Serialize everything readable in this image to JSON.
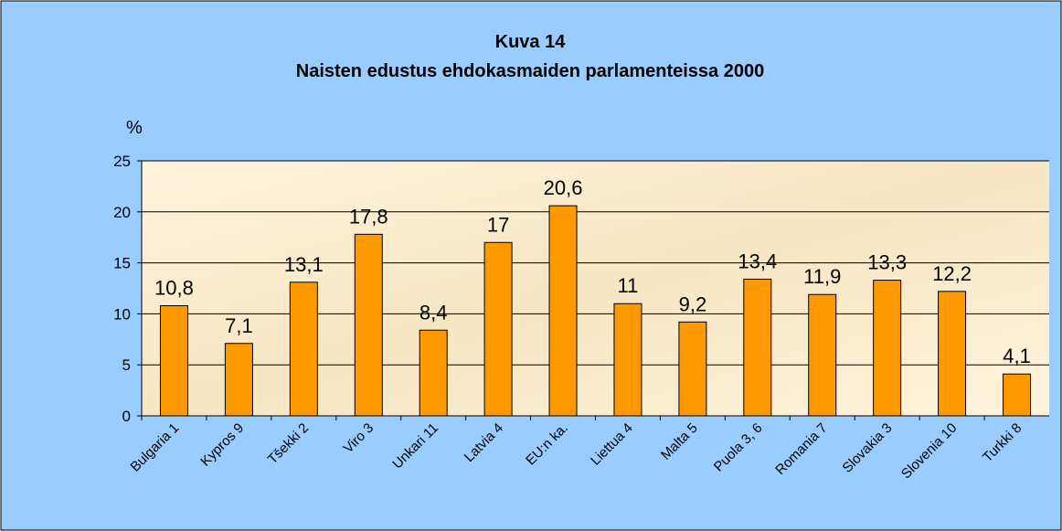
{
  "chart_data": {
    "type": "bar",
    "title": "Kuva 14",
    "subtitle": "Naisten edustus ehdokasmaiden parlamenteissa 2000",
    "y_label": "%",
    "categories": [
      "Bulgaria 1",
      "Kypros 9",
      "Tšekki 2",
      "Viro 3",
      "Unkari 11",
      "Latvia 4",
      "EU:n ka.",
      "Liettua 4",
      "Malta 5",
      "Puola 3, 6",
      "Romania 7",
      "Slovakia 3",
      "Slovenia 10",
      "Turkki 8"
    ],
    "values": [
      10.8,
      7.1,
      13.1,
      17.8,
      8.4,
      17,
      20.6,
      11,
      9.2,
      13.4,
      11.9,
      13.3,
      12.2,
      4.1
    ],
    "value_labels": [
      "10,8",
      "7,1",
      "13,1",
      "17,8",
      "8,4",
      "17",
      "20,6",
      "11",
      "9,2",
      "13,4",
      "11,9",
      "13,3",
      "12,2",
      "4,1"
    ],
    "color": "#ff9900",
    "ylim": [
      0,
      25
    ],
    "yticks": [
      0,
      5,
      10,
      15,
      20,
      25
    ],
    "grid": true
  }
}
